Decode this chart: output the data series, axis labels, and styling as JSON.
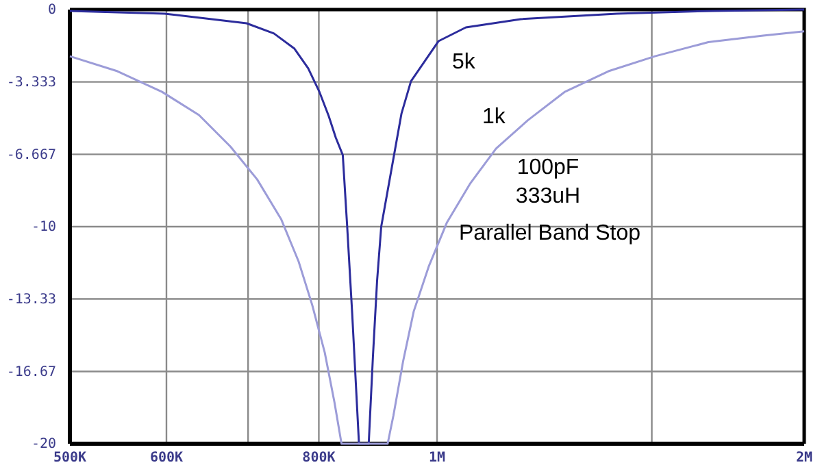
{
  "chart_data": {
    "type": "line",
    "log": "x",
    "grid": true,
    "marker": "none",
    "line_style": "solid",
    "xlim": [
      500000,
      2000000
    ],
    "ylim": [
      -20,
      0
    ],
    "xticks": [
      {
        "value": 500000,
        "label": "500K"
      },
      {
        "value": 600000,
        "label": "600K"
      },
      {
        "value": 700000,
        "label": null
      },
      {
        "value": 800000,
        "label": "800K"
      },
      {
        "value": 1000000,
        "label": "1M"
      },
      {
        "value": 1500000,
        "label": null
      },
      {
        "value": 2000000,
        "label": "2M"
      }
    ],
    "yticks": [
      0,
      -3.333,
      -6.667,
      -10,
      -13.33,
      -16.67,
      -20
    ],
    "annotations": [
      "100pF",
      "333uH",
      "Parallel Band Stop"
    ],
    "series": [
      {
        "name": "5k",
        "color": "#2c2c9c",
        "x": [
          500000,
          598000,
          698000,
          735000,
          764000,
          784000,
          801000,
          815000,
          826000,
          837000,
          844000,
          852000,
          863000,
          879000,
          886000,
          893000,
          900000,
          935000,
          952000,
          1003000,
          1056000,
          1171000,
          1404000,
          1682000,
          2000000
        ],
        "values": [
          -0.06,
          -0.19,
          -0.63,
          -1.1,
          -1.8,
          -2.7,
          -3.8,
          -4.9,
          -5.9,
          -6.7,
          -10,
          -14,
          -20,
          -20,
          -16,
          -12.5,
          -10,
          -4.8,
          -3.3,
          -1.45,
          -0.82,
          -0.44,
          -0.19,
          -0.06,
          0
        ]
      },
      {
        "name": "1k",
        "color": "#9c9cd8",
        "x": [
          500000,
          547000,
          595000,
          638000,
          677000,
          712000,
          745000,
          770000,
          790000,
          809000,
          824000,
          835000,
          911000,
          921000,
          938000,
          957000,
          985000,
          1019000,
          1065000,
          1118000,
          1187000,
          1272000,
          1382000,
          1509000,
          1669000,
          1851000,
          2000000
        ],
        "values": [
          -2.15,
          -2.84,
          -3.79,
          -4.86,
          -6.31,
          -7.82,
          -9.65,
          -11.6,
          -13.6,
          -15.8,
          -18.1,
          -20,
          -20,
          -18.7,
          -16.2,
          -13.9,
          -11.8,
          -9.8,
          -8,
          -6.4,
          -5.1,
          -3.8,
          -2.84,
          -2.15,
          -1.5,
          -1.2,
          -1
        ]
      }
    ]
  }
}
